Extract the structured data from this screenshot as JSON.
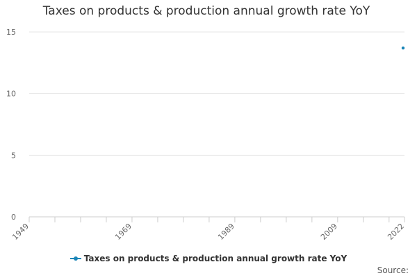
{
  "chart_data": {
    "type": "line",
    "title": "Taxes on products & production annual growth rate YoY",
    "xlabel": "",
    "ylabel": "",
    "xlim": [
      1949,
      2022
    ],
    "ylim": [
      0,
      15
    ],
    "y_ticks": [
      0,
      5,
      10,
      15
    ],
    "x_ticks": [
      1949,
      1969,
      1989,
      2009,
      2022
    ],
    "grid": true,
    "series": [
      {
        "name": "Taxes on products & production annual growth rate YoY",
        "color": "#1a85b7",
        "points": [
          {
            "x": 2022,
            "y": 13.7
          }
        ]
      }
    ],
    "legend_position": "bottom"
  },
  "source_label": "Source:"
}
